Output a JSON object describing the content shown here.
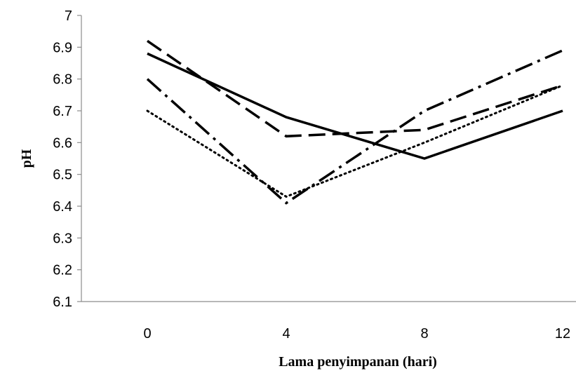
{
  "chart_data": {
    "type": "line",
    "title": "",
    "xlabel": "Lama penyimpanan (hari)",
    "ylabel": "pH",
    "x": [
      0,
      4,
      8,
      12
    ],
    "x_ticks": [
      "0",
      "4",
      "8",
      "12"
    ],
    "y_ticks": [
      "6.1",
      "6.2",
      "6.3",
      "6.4",
      "6.5",
      "6.6",
      "6.7",
      "6.8",
      "6.9",
      "7"
    ],
    "ylim": [
      6.1,
      7.0
    ],
    "grid": false,
    "legend": "none",
    "series": [
      {
        "style": "solid",
        "values": [
          6.88,
          6.68,
          6.55,
          6.7
        ]
      },
      {
        "style": "dashed",
        "values": [
          6.92,
          6.62,
          6.64,
          6.78
        ]
      },
      {
        "style": "dash-dot",
        "values": [
          6.8,
          6.41,
          6.7,
          6.89
        ]
      },
      {
        "style": "dotted",
        "values": [
          6.7,
          6.43,
          6.6,
          6.78
        ]
      }
    ]
  }
}
